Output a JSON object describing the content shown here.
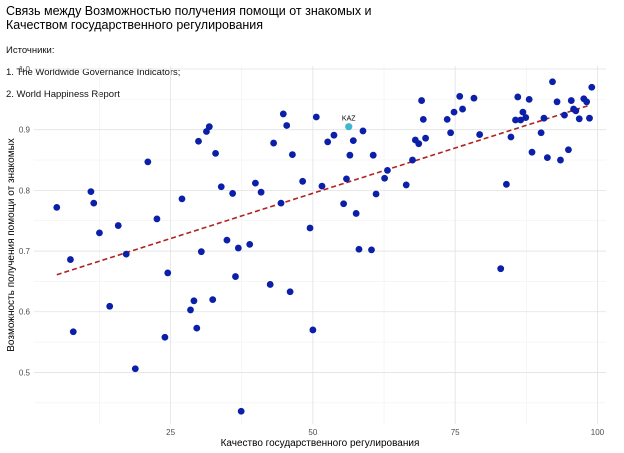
{
  "chart_data": {
    "type": "scatter",
    "title_lines": [
      "Связь между Возможностью получения помощи от знакомых и",
      "Качеством государственного регулирования"
    ],
    "subtitle_lines": [
      "Источники:",
      "1. The Worldwide Governance Indicators;",
      "2. World Happiness Report"
    ],
    "xlabel": "Качество государственного регулирования",
    "ylabel": "Возможность получения помощи от знакомых",
    "xlim": [
      1,
      101.5
    ],
    "ylim": [
      0.415,
      1.005
    ],
    "xticks": [
      25,
      50,
      75,
      100
    ],
    "yticks": [
      0.5,
      0.6,
      0.7,
      0.8,
      0.9,
      1.0
    ],
    "ytick_labels": [
      "0.5",
      "0.6",
      "0.7",
      "0.8",
      "0.9",
      "1.0"
    ],
    "grid": true,
    "point_color": "#0b1fa8",
    "highlight_color": "#3fb8cf",
    "trend_color": "#b22222",
    "trendline": {
      "x": [
        5,
        98.5
      ],
      "y": [
        0.661,
        0.94
      ]
    },
    "highlight": {
      "label": "KAZ",
      "x": 56.3,
      "y": 0.905
    },
    "points": [
      [
        5,
        0.772
      ],
      [
        7.4,
        0.686
      ],
      [
        7.9,
        0.567
      ],
      [
        11,
        0.798
      ],
      [
        11.5,
        0.779
      ],
      [
        12.5,
        0.73
      ],
      [
        14.3,
        0.609
      ],
      [
        15.8,
        0.742
      ],
      [
        17.2,
        0.695
      ],
      [
        18.8,
        0.506
      ],
      [
        21,
        0.847
      ],
      [
        22.6,
        0.753
      ],
      [
        24,
        0.558
      ],
      [
        24.5,
        0.664
      ],
      [
        27,
        0.786
      ],
      [
        28.5,
        0.603
      ],
      [
        29.1,
        0.618
      ],
      [
        29.6,
        0.573
      ],
      [
        29.9,
        0.881
      ],
      [
        30.4,
        0.699
      ],
      [
        31.3,
        0.897
      ],
      [
        31.8,
        0.905
      ],
      [
        32.4,
        0.62
      ],
      [
        32.9,
        0.861
      ],
      [
        33.9,
        0.806
      ],
      [
        34.9,
        0.718
      ],
      [
        35.9,
        0.795
      ],
      [
        36.4,
        0.658
      ],
      [
        36.9,
        0.705
      ],
      [
        37.4,
        0.436
      ],
      [
        38.9,
        0.711
      ],
      [
        39.9,
        0.812
      ],
      [
        40.9,
        0.797
      ],
      [
        42.5,
        0.645
      ],
      [
        43.1,
        0.878
      ],
      [
        44.4,
        0.779
      ],
      [
        44.8,
        0.926
      ],
      [
        45.4,
        0.907
      ],
      [
        46,
        0.633
      ],
      [
        46.4,
        0.859
      ],
      [
        48.2,
        0.815
      ],
      [
        49.5,
        0.738
      ],
      [
        50,
        0.57
      ],
      [
        50.6,
        0.921
      ],
      [
        51.6,
        0.807
      ],
      [
        52.6,
        0.88
      ],
      [
        53.7,
        0.891
      ],
      [
        55.4,
        0.778
      ],
      [
        55.9,
        0.819
      ],
      [
        56.5,
        0.858
      ],
      [
        57.1,
        0.882
      ],
      [
        57.6,
        0.762
      ],
      [
        58.1,
        0.703
      ],
      [
        58.8,
        0.898
      ],
      [
        60.3,
        0.702
      ],
      [
        60.6,
        0.858
      ],
      [
        61.1,
        0.794
      ],
      [
        62.6,
        0.82
      ],
      [
        63.1,
        0.833
      ],
      [
        66.4,
        0.809
      ],
      [
        67.5,
        0.85
      ],
      [
        68,
        0.883
      ],
      [
        68.6,
        0.877
      ],
      [
        69.1,
        0.948
      ],
      [
        69.4,
        0.917
      ],
      [
        69.8,
        0.886
      ],
      [
        73.6,
        0.917
      ],
      [
        74.2,
        0.895
      ],
      [
        74.8,
        0.929
      ],
      [
        75.8,
        0.955
      ],
      [
        76.3,
        0.934
      ],
      [
        78.3,
        0.952
      ],
      [
        79.3,
        0.892
      ],
      [
        83,
        0.671
      ],
      [
        84,
        0.81
      ],
      [
        84.8,
        0.888
      ],
      [
        85.6,
        0.916
      ],
      [
        86,
        0.954
      ],
      [
        86.5,
        0.916
      ],
      [
        86.9,
        0.929
      ],
      [
        87.4,
        0.92
      ],
      [
        88,
        0.95
      ],
      [
        88.5,
        0.863
      ],
      [
        90.1,
        0.895
      ],
      [
        90.6,
        0.919
      ],
      [
        91.2,
        0.854
      ],
      [
        92.1,
        0.979
      ],
      [
        92.9,
        0.946
      ],
      [
        93.5,
        0.85
      ],
      [
        94.2,
        0.924
      ],
      [
        94.9,
        0.867
      ],
      [
        95.4,
        0.948
      ],
      [
        95.8,
        0.934
      ],
      [
        96.2,
        0.931
      ],
      [
        96.8,
        0.918
      ],
      [
        97.6,
        0.951
      ],
      [
        98.1,
        0.946
      ],
      [
        98.6,
        0.919
      ],
      [
        99,
        0.97
      ]
    ]
  }
}
